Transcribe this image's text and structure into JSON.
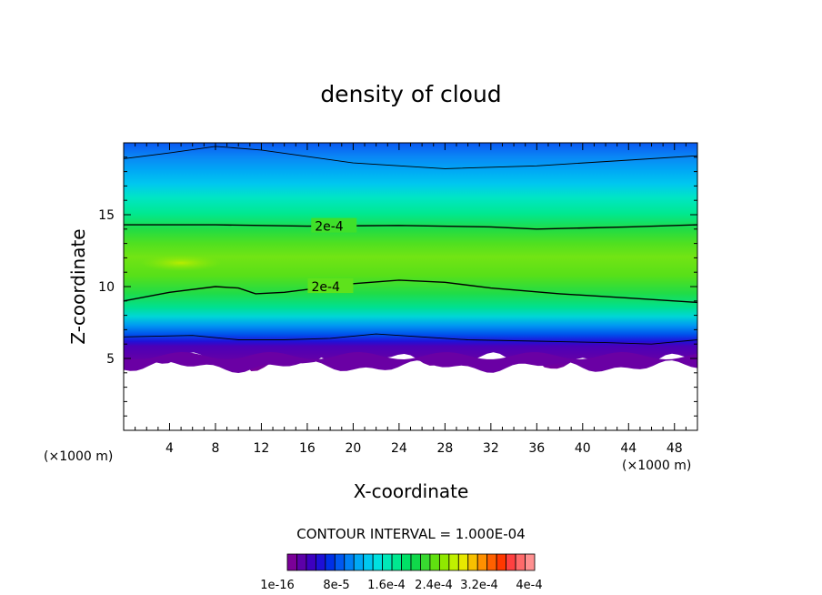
{
  "chart_data": {
    "type": "contour",
    "title": "density of cloud",
    "xlabel": "X-coordinate",
    "ylabel": "Z-coordinate",
    "x_unit_left": "(×1000 m)",
    "x_unit_right": "(×1000 m)",
    "xlim": [
      0,
      50
    ],
    "ylim": [
      0,
      20
    ],
    "xticks": [
      4,
      8,
      12,
      16,
      20,
      24,
      28,
      32,
      36,
      40,
      44,
      48
    ],
    "yticks": [
      5,
      10,
      15
    ],
    "grid": false,
    "contour_interval": "CONTOUR INTERVAL = 1.000E-04",
    "contour_lines": [
      {
        "label": "2e-4",
        "label_at": [
          16.5,
          14.2
        ],
        "points": [
          [
            0,
            14.3
          ],
          [
            8,
            14.3
          ],
          [
            16,
            14.2
          ],
          [
            24,
            14.25
          ],
          [
            32,
            14.15
          ],
          [
            36,
            14.0
          ],
          [
            44,
            14.15
          ],
          [
            50,
            14.3
          ]
        ]
      },
      {
        "label": "2e-4",
        "label_at": [
          16.2,
          10.0
        ],
        "points": [
          [
            0,
            9.0
          ],
          [
            4,
            9.6
          ],
          [
            8,
            10.0
          ],
          [
            10,
            9.9
          ],
          [
            11.5,
            9.5
          ],
          [
            14,
            9.6
          ],
          [
            20,
            10.2
          ],
          [
            24,
            10.45
          ],
          [
            28,
            10.3
          ],
          [
            32,
            9.9
          ],
          [
            38,
            9.5
          ],
          [
            44,
            9.2
          ],
          [
            50,
            8.9
          ]
        ]
      },
      {
        "label": "",
        "label_at": [
          0,
          0
        ],
        "points": [
          [
            0,
            18.9
          ],
          [
            4,
            19.3
          ],
          [
            8,
            19.75
          ],
          [
            12,
            19.5
          ],
          [
            20,
            18.6
          ],
          [
            28,
            18.2
          ],
          [
            36,
            18.4
          ],
          [
            44,
            18.8
          ],
          [
            50,
            19.1
          ]
        ]
      },
      {
        "label": "",
        "label_at": [
          0,
          0
        ],
        "points": [
          [
            0,
            6.5
          ],
          [
            6,
            6.6
          ],
          [
            10,
            6.3
          ],
          [
            14,
            6.3
          ],
          [
            18,
            6.4
          ],
          [
            22,
            6.7
          ],
          [
            26,
            6.5
          ],
          [
            30,
            6.3
          ],
          [
            36,
            6.2
          ],
          [
            42,
            6.1
          ],
          [
            46,
            6.0
          ],
          [
            50,
            6.3
          ]
        ]
      }
    ],
    "colorbar": {
      "colors": [
        "#7a0098",
        "#5c00a8",
        "#3d00bf",
        "#1e10d6",
        "#0030e6",
        "#0058f0",
        "#0080f5",
        "#00a8f5",
        "#00c8f0",
        "#00e0e0",
        "#00e8b8",
        "#00e890",
        "#00e066",
        "#10d84a",
        "#38d830",
        "#60e010",
        "#90e800",
        "#c0f000",
        "#e8e800",
        "#f8c000",
        "#ff9000",
        "#ff6000",
        "#ff3800",
        "#ff4040",
        "#ff6a6a",
        "#ff9090"
      ],
      "tick_labels": [
        "1e-16",
        "8e-5",
        "1.6e-4",
        "2.4e-4",
        "3.2e-4",
        "4e-4"
      ]
    }
  }
}
